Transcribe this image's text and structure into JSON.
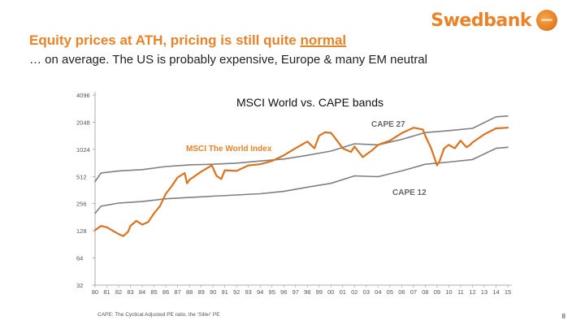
{
  "brand": {
    "name": "Swedbank",
    "logo_icon": "oak-tree-logo-icon",
    "color": "#e8832a"
  },
  "header": {
    "title_prefix": "Equity prices at ATH, pricing is still quite ",
    "title_emphasis": "normal",
    "subtitle": "… on average. The US is probably expensive, Europe & many EM neutral"
  },
  "footer": {
    "footnote": "CAPE: The Cyclical Adjusted PE ratio, the ‘Siller’ PE",
    "page_number": "8"
  },
  "colors": {
    "msci_line": "#d9731f",
    "band_line": "#7f7f7f",
    "axis": "#999999",
    "label_orange": "#e8832a",
    "label_grey": "#666666"
  },
  "chart_data": {
    "type": "line",
    "title": "MSCI World vs. CAPE bands",
    "yscale": "log2",
    "ylim": [
      32,
      4096
    ],
    "yticks": [
      4096,
      2048,
      1024,
      512,
      256,
      128,
      64,
      32
    ],
    "categories": [
      "80",
      "81",
      "82",
      "83",
      "84",
      "85",
      "86",
      "87",
      "88",
      "89",
      "90",
      "91",
      "92",
      "93",
      "94",
      "95",
      "96",
      "97",
      "98",
      "99",
      "00",
      "01",
      "02",
      "03",
      "04",
      "05",
      "06",
      "07",
      "08",
      "09",
      "10",
      "11",
      "12",
      "13",
      "14",
      "15"
    ],
    "xlim": [
      1980,
      2015
    ],
    "annotations": [
      {
        "text": "MSCI The World Index",
        "series": "MSCI The World Index"
      },
      {
        "text": "CAPE 27",
        "series": "CAPE 27"
      },
      {
        "text": "CAPE 12",
        "series": "CAPE 12"
      }
    ],
    "series": [
      {
        "name": "MSCI The World Index",
        "x": [
          1980,
          1980.5,
          1981,
          1981.5,
          1982,
          1982.4,
          1982.8,
          1983,
          1983.5,
          1984,
          1984.5,
          1985,
          1985.5,
          1986,
          1986.5,
          1987,
          1987.6,
          1987.8,
          1988,
          1989,
          1989.9,
          1990.3,
          1990.7,
          1991,
          1992,
          1993,
          1994,
          1995,
          1996,
          1997,
          1998,
          1998.6,
          1999,
          1999.5,
          2000,
          2000.3,
          2001,
          2001.7,
          2002,
          2002.7,
          2003,
          2003.5,
          2004,
          2005,
          2006,
          2007,
          2007.8,
          2008,
          2008.5,
          2009,
          2009.2,
          2009.6,
          2010,
          2010.5,
          2011,
          2011.5,
          2011.8,
          2012,
          2013,
          2014,
          2015
        ],
        "values": [
          130,
          145,
          140,
          128,
          118,
          112,
          125,
          145,
          165,
          150,
          160,
          200,
          240,
          330,
          400,
          500,
          560,
          430,
          470,
          580,
          680,
          520,
          480,
          600,
          590,
          680,
          700,
          760,
          880,
          1050,
          1250,
          1050,
          1450,
          1580,
          1560,
          1400,
          1050,
          960,
          1100,
          840,
          900,
          1000,
          1150,
          1280,
          1550,
          1780,
          1700,
          1450,
          1050,
          680,
          750,
          1050,
          1150,
          1050,
          1280,
          1080,
          1150,
          1220,
          1500,
          1750,
          1780
        ]
      },
      {
        "name": "CAPE 27",
        "x": [
          1980,
          1980.5,
          1982,
          1984,
          1986,
          1988,
          1990,
          1992,
          1994,
          1996,
          1998,
          2000,
          2002,
          2004,
          2006,
          2008,
          2010,
          2012,
          2014,
          2015
        ],
        "values": [
          450,
          560,
          590,
          610,
          660,
          690,
          700,
          720,
          760,
          800,
          880,
          980,
          1180,
          1150,
          1320,
          1570,
          1650,
          1750,
          2350,
          2400
        ]
      },
      {
        "name": "CAPE 12",
        "x": [
          1980,
          1980.5,
          1982,
          1984,
          1986,
          1988,
          1990,
          1992,
          1994,
          1996,
          1998,
          2000,
          2002,
          2004,
          2006,
          2008,
          2010,
          2012,
          2014,
          2015
        ],
        "values": [
          200,
          240,
          260,
          270,
          290,
          300,
          310,
          320,
          330,
          350,
          390,
          430,
          520,
          510,
          590,
          700,
          740,
          790,
          1050,
          1080
        ]
      }
    ]
  }
}
